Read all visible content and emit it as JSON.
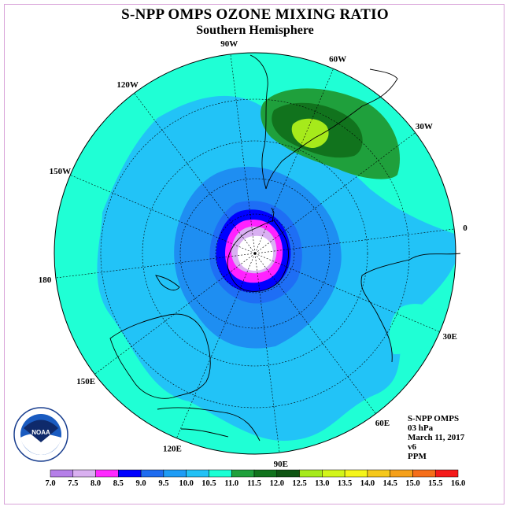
{
  "title": "S-NPP OMPS OZONE MIXING RATIO",
  "subtitle": "Southern Hemisphere",
  "info": {
    "instrument": "S-NPP OMPS",
    "pressure": "03 hPa",
    "date": "March 11, 2017",
    "version": "v6",
    "units": "PPM"
  },
  "logo_text": "NOAA",
  "logo_ring_text": "NATIONAL OCEANIC AND ATMOSPHERIC ADMINISTRATION · U.S. DEPARTMENT OF COMMERCE",
  "longitude_labels": [
    {
      "text": "90W",
      "lon": -90
    },
    {
      "text": "60W",
      "lon": -60
    },
    {
      "text": "30W",
      "lon": -30
    },
    {
      "text": "0",
      "lon": 0
    },
    {
      "text": "30E",
      "lon": 30
    },
    {
      "text": "60E",
      "lon": 60
    },
    {
      "text": "90E",
      "lon": 90
    },
    {
      "text": "120E",
      "lon": 120
    },
    {
      "text": "150E",
      "lon": 150
    },
    {
      "text": "180",
      "lon": 180
    },
    {
      "text": "150W",
      "lon": -150
    },
    {
      "text": "120W",
      "lon": -120
    }
  ],
  "colorbar": {
    "labels": [
      "7.0",
      "7.5",
      "8.0",
      "8.5",
      "9.0",
      "9.5",
      "10.0",
      "10.5",
      "11.0",
      "11.5",
      "12.0",
      "12.5",
      "13.0",
      "13.5",
      "14.0",
      "14.5",
      "15.0",
      "15.5",
      "16.0"
    ],
    "colors": [
      "#b57fe8",
      "#d9b0f0",
      "#ff28ff",
      "#0000ff",
      "#1e6cf0",
      "#1e9cf5",
      "#22c1f5",
      "#1affd4",
      "#1fa03c",
      "#11731d",
      "#0e5412",
      "#a6ea1b",
      "#d2f51a",
      "#f5f51a",
      "#f5c81a",
      "#f5a01a",
      "#f56e1a",
      "#f51a1a",
      "#7a4a2a"
    ]
  },
  "colors": {
    "background_map": "#1fffd5",
    "frame": "#d9a3d9"
  }
}
